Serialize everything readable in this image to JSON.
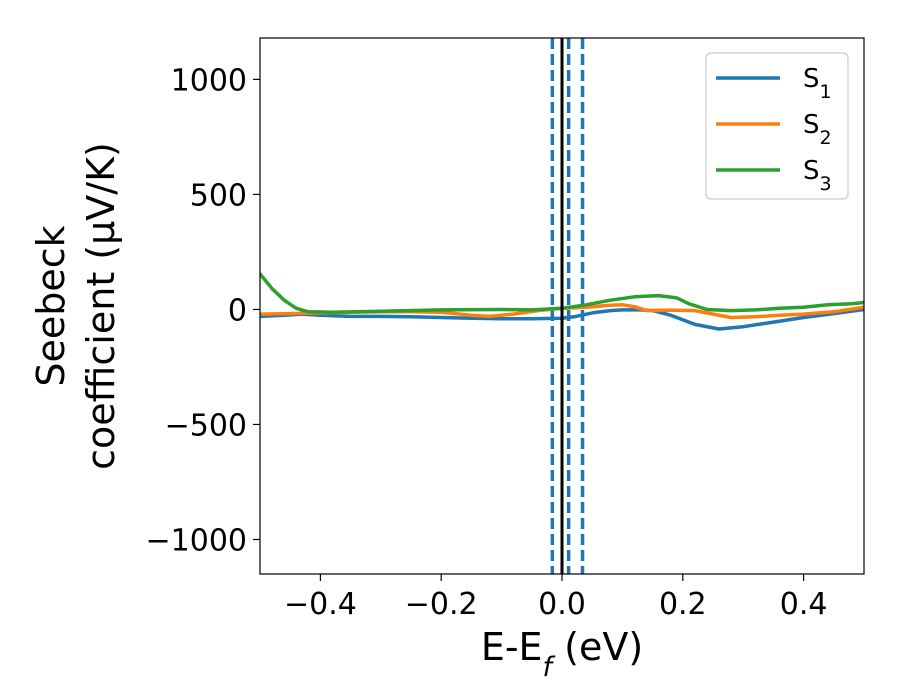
{
  "chart_data": {
    "type": "line",
    "title": "",
    "xlabel": "E-E_f (eV)",
    "ylabel_line1": "Seebeck",
    "ylabel_line2": "coefficient  (μV/K)",
    "xlim": [
      -0.5,
      0.5
    ],
    "ylim": [
      -1150,
      1180
    ],
    "x_ticks": [
      -0.4,
      -0.2,
      0.0,
      0.2,
      0.4
    ],
    "x_tick_labels": [
      "−0.4",
      "−0.2",
      "0.0",
      "0.2",
      "0.4"
    ],
    "y_ticks": [
      -1000,
      -500,
      0,
      500,
      1000
    ],
    "y_tick_labels": [
      "−1000",
      "−500",
      "0",
      "500",
      "1000"
    ],
    "grid": false,
    "legend_position": "top-right",
    "series": [
      {
        "name": "S",
        "subscript": "1",
        "color": "#1f77b4",
        "points": [
          [
            -0.5,
            -30
          ],
          [
            -0.46,
            -25
          ],
          [
            -0.43,
            -20
          ],
          [
            -0.4,
            -25
          ],
          [
            -0.35,
            -30
          ],
          [
            -0.3,
            -30
          ],
          [
            -0.25,
            -32
          ],
          [
            -0.2,
            -35
          ],
          [
            -0.15,
            -38
          ],
          [
            -0.1,
            -40
          ],
          [
            -0.05,
            -40
          ],
          [
            0.0,
            -38
          ],
          [
            0.02,
            -32
          ],
          [
            0.05,
            -15
          ],
          [
            0.08,
            -5
          ],
          [
            0.1,
            -2
          ],
          [
            0.13,
            -2
          ],
          [
            0.15,
            -5
          ],
          [
            0.18,
            -25
          ],
          [
            0.22,
            -65
          ],
          [
            0.26,
            -85
          ],
          [
            0.3,
            -75
          ],
          [
            0.35,
            -55
          ],
          [
            0.4,
            -35
          ],
          [
            0.45,
            -18
          ],
          [
            0.5,
            0
          ]
        ]
      },
      {
        "name": "S",
        "subscript": "2",
        "color": "#ff7f0e",
        "points": [
          [
            -0.5,
            -20
          ],
          [
            -0.45,
            -18
          ],
          [
            -0.4,
            -15
          ],
          [
            -0.35,
            -12
          ],
          [
            -0.3,
            -10
          ],
          [
            -0.25,
            -10
          ],
          [
            -0.2,
            -12
          ],
          [
            -0.15,
            -25
          ],
          [
            -0.12,
            -30
          ],
          [
            -0.08,
            -20
          ],
          [
            -0.04,
            -5
          ],
          [
            0.0,
            5
          ],
          [
            0.04,
            10
          ],
          [
            0.08,
            18
          ],
          [
            0.1,
            20
          ],
          [
            0.12,
            12
          ],
          [
            0.14,
            -5
          ],
          [
            0.18,
            -3
          ],
          [
            0.22,
            -5
          ],
          [
            0.25,
            -20
          ],
          [
            0.28,
            -35
          ],
          [
            0.32,
            -32
          ],
          [
            0.36,
            -25
          ],
          [
            0.4,
            -20
          ],
          [
            0.45,
            -10
          ],
          [
            0.5,
            10
          ]
        ]
      },
      {
        "name": "S",
        "subscript": "3",
        "color": "#2ca02c",
        "points": [
          [
            -0.5,
            155
          ],
          [
            -0.48,
            90
          ],
          [
            -0.46,
            40
          ],
          [
            -0.44,
            5
          ],
          [
            -0.42,
            -10
          ],
          [
            -0.38,
            -12
          ],
          [
            -0.3,
            -8
          ],
          [
            -0.2,
            -2
          ],
          [
            -0.1,
            0
          ],
          [
            -0.05,
            -2
          ],
          [
            0.0,
            5
          ],
          [
            0.04,
            20
          ],
          [
            0.08,
            40
          ],
          [
            0.12,
            55
          ],
          [
            0.16,
            60
          ],
          [
            0.19,
            50
          ],
          [
            0.21,
            25
          ],
          [
            0.24,
            0
          ],
          [
            0.28,
            -5
          ],
          [
            0.32,
            -2
          ],
          [
            0.36,
            5
          ],
          [
            0.4,
            10
          ],
          [
            0.44,
            20
          ],
          [
            0.48,
            25
          ],
          [
            0.5,
            30
          ]
        ]
      }
    ],
    "vertical_lines": [
      {
        "x": 0.0,
        "style": "solid",
        "color": "#000000"
      },
      {
        "x": -0.016,
        "style": "dashed",
        "color": "#1f77b4"
      },
      {
        "x": 0.011,
        "style": "dashed",
        "color": "#1f77b4"
      },
      {
        "x": 0.034,
        "style": "dashed",
        "color": "#1f77b4"
      }
    ]
  }
}
